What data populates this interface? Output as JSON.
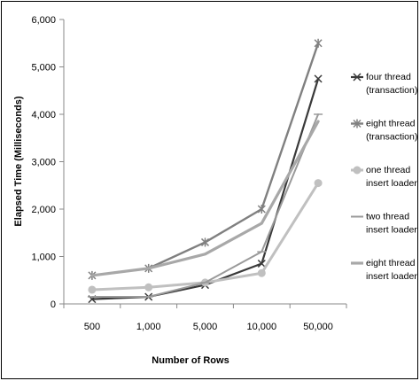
{
  "chart_data": {
    "type": "line",
    "categories": [
      "500",
      "1,000",
      "5,000",
      "10,000",
      "50,000"
    ],
    "ylim": [
      0,
      6000
    ],
    "yticks": [
      "0",
      "1,000",
      "2,000",
      "3,000",
      "4,000",
      "5,000",
      "6,000"
    ],
    "xlabel": "Number of Rows",
    "ylabel": "Elapsed Time (Milliseconds)",
    "grid": false,
    "legend_position": "right",
    "series": [
      {
        "name": [
          "four thread",
          "(transaction)"
        ],
        "color": "#3a3a3a",
        "marker": "x",
        "width": 2.2,
        "values": [
          100,
          150,
          400,
          850,
          4750
        ]
      },
      {
        "name": [
          "eight thread",
          "(transaction)"
        ],
        "color": "#808080",
        "marker": "star",
        "width": 2.4,
        "values": [
          600,
          750,
          1300,
          2000,
          5500
        ]
      },
      {
        "name": [
          "one thread",
          "insert loader"
        ],
        "color": "#c0c0c0",
        "marker": "circle",
        "width": 3,
        "values": [
          300,
          350,
          450,
          650,
          2550
        ]
      },
      {
        "name": [
          "two thread",
          "insert loader"
        ],
        "color": "#9a9a9a",
        "marker": "dash",
        "width": 2,
        "values": [
          150,
          150,
          450,
          1100,
          4000
        ]
      },
      {
        "name": [
          "eight thread",
          "insert loader"
        ],
        "color": "#a8a8a8",
        "marker": "none",
        "width": 3.2,
        "values": [
          600,
          750,
          1050,
          1700,
          3850
        ]
      }
    ]
  }
}
